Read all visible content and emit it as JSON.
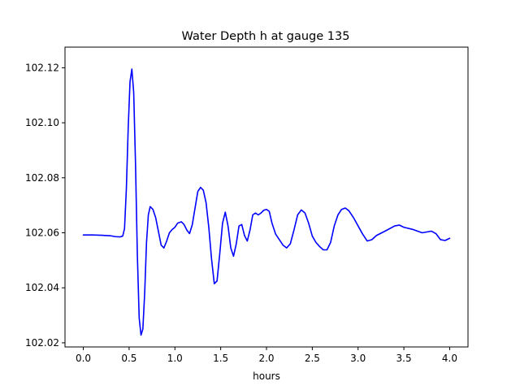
{
  "chart_data": {
    "type": "line",
    "title": "Water Depth h at gauge 135",
    "xlabel": "hours",
    "ylabel": "",
    "xlim": [
      -0.2,
      4.2
    ],
    "ylim": [
      102.0185,
      102.1275
    ],
    "xticks": [
      0.0,
      0.5,
      1.0,
      1.5,
      2.0,
      2.5,
      3.0,
      3.5,
      4.0
    ],
    "xtick_labels": [
      "0.0",
      "0.5",
      "1.0",
      "1.5",
      "2.0",
      "2.5",
      "3.0",
      "3.5",
      "4.0"
    ],
    "yticks": [
      102.02,
      102.04,
      102.06,
      102.08,
      102.1,
      102.12
    ],
    "ytick_labels": [
      "102.02",
      "102.04",
      "102.06",
      "102.08",
      "102.10",
      "102.12"
    ],
    "grid": false,
    "series": [
      {
        "color": "#0000ff",
        "x": [
          0.0,
          0.1,
          0.2,
          0.3,
          0.35,
          0.4,
          0.43,
          0.45,
          0.47,
          0.49,
          0.51,
          0.53,
          0.55,
          0.57,
          0.59,
          0.61,
          0.63,
          0.65,
          0.67,
          0.69,
          0.71,
          0.73,
          0.76,
          0.79,
          0.82,
          0.85,
          0.88,
          0.91,
          0.94,
          0.97,
          1.0,
          1.03,
          1.07,
          1.1,
          1.13,
          1.16,
          1.19,
          1.22,
          1.25,
          1.28,
          1.31,
          1.34,
          1.37,
          1.4,
          1.43,
          1.46,
          1.49,
          1.52,
          1.55,
          1.58,
          1.61,
          1.64,
          1.67,
          1.7,
          1.73,
          1.76,
          1.79,
          1.82,
          1.85,
          1.88,
          1.91,
          1.94,
          1.97,
          2.0,
          2.03,
          2.06,
          2.1,
          2.14,
          2.18,
          2.22,
          2.26,
          2.3,
          2.34,
          2.38,
          2.42,
          2.46,
          2.5,
          2.54,
          2.58,
          2.62,
          2.66,
          2.7,
          2.74,
          2.78,
          2.82,
          2.86,
          2.9,
          2.95,
          3.0,
          3.05,
          3.1,
          3.15,
          3.2,
          3.3,
          3.4,
          3.45,
          3.5,
          3.6,
          3.7,
          3.8,
          3.85,
          3.9,
          3.95,
          4.0
        ],
        "y": [
          102.0592,
          102.0592,
          102.0591,
          102.0589,
          102.0586,
          102.0585,
          102.0588,
          102.0615,
          102.076,
          102.098,
          102.115,
          102.1195,
          102.111,
          102.085,
          102.052,
          102.029,
          102.0228,
          102.025,
          102.038,
          102.0565,
          102.0665,
          102.0695,
          102.0685,
          102.0655,
          102.0605,
          102.0555,
          102.0545,
          102.057,
          102.06,
          102.0612,
          102.062,
          102.0635,
          102.064,
          102.063,
          102.061,
          102.0597,
          102.063,
          102.069,
          102.075,
          102.0765,
          102.0755,
          102.071,
          102.062,
          102.0505,
          102.0415,
          102.0425,
          102.0525,
          102.0635,
          102.0675,
          102.0625,
          102.0545,
          102.0515,
          102.056,
          102.0625,
          102.063,
          102.059,
          102.057,
          102.061,
          102.0665,
          102.0672,
          102.0665,
          102.0672,
          102.0682,
          102.0685,
          102.0678,
          102.0635,
          102.0595,
          102.0575,
          102.0555,
          102.0545,
          102.056,
          102.061,
          102.0665,
          102.0683,
          102.0672,
          102.0635,
          102.0588,
          102.0565,
          102.055,
          102.0538,
          102.0538,
          102.0565,
          102.0625,
          102.0665,
          102.0685,
          102.069,
          102.068,
          102.0655,
          102.0625,
          102.0595,
          102.057,
          102.0575,
          102.059,
          102.0607,
          102.0625,
          102.0628,
          102.062,
          102.0612,
          102.06,
          102.0606,
          102.0597,
          102.0575,
          102.0572,
          102.058
        ]
      }
    ]
  }
}
